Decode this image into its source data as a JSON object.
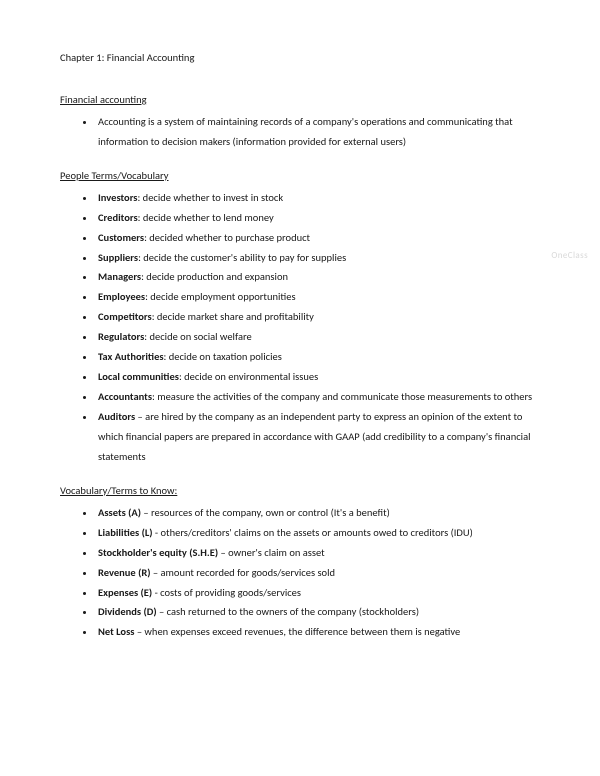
{
  "title": "Chapter 1: Financial Accounting",
  "watermark": "OneClass",
  "sections": [
    {
      "heading": "Financial accounting",
      "items": [
        {
          "term": "",
          "desc": "Accounting is a system of maintaining records of a company's operations and communicating that information to decision makers (information provided for external users)"
        }
      ]
    },
    {
      "heading": "People Terms/Vocabulary",
      "items": [
        {
          "term": "Investors",
          "desc": ": decide whether to invest in stock"
        },
        {
          "term": "Creditors",
          "desc": ": decide whether to lend money"
        },
        {
          "term": "Customers",
          "desc": ": decided whether to purchase product"
        },
        {
          "term": "Suppliers",
          "desc": ": decide the customer's ability to pay for supplies"
        },
        {
          "term": "Managers",
          "desc": ": decide production and expansion"
        },
        {
          "term": "Employees",
          "desc": ": decide employment opportunities"
        },
        {
          "term": "Competitors",
          "desc": ": decide market share and profitability"
        },
        {
          "term": "Regulators",
          "desc": ": decide on social welfare"
        },
        {
          "term": "Tax Authorities",
          "desc": ": decide on taxation policies"
        },
        {
          "term": "Local communities",
          "desc": ": decide on environmental issues"
        },
        {
          "term": "Accountants",
          "desc": ": measure the activities of the company and communicate those measurements to others"
        },
        {
          "term": "Auditors",
          "desc": " – are hired by the company as an independent party to express an opinion of the extent to which financial papers are prepared in accordance with GAAP (add credibility to a company's financial statements"
        }
      ]
    },
    {
      "heading": "Vocabulary/Terms to Know:",
      "items": [
        {
          "term": "Assets (A)",
          "desc": " – resources of the company, own or control (It's a benefit)"
        },
        {
          "term": "Liabilities (L)",
          "desc": " - others/creditors' claims on the assets or amounts owed to creditors (IDU)"
        },
        {
          "term": "Stockholder's equity (S.H.E)",
          "desc": " – owner's claim on asset"
        },
        {
          "term": "Revenue (R)",
          "desc": " – amount recorded for goods/services sold"
        },
        {
          "term": "Expenses (E)",
          "desc": " - costs of providing goods/services"
        },
        {
          "term": "Dividends (D)",
          "desc": " – cash returned to the owners of the company (stockholders)"
        },
        {
          "term": "Net Loss",
          "desc": " – when expenses exceed revenues, the difference between them is negative"
        }
      ]
    }
  ]
}
